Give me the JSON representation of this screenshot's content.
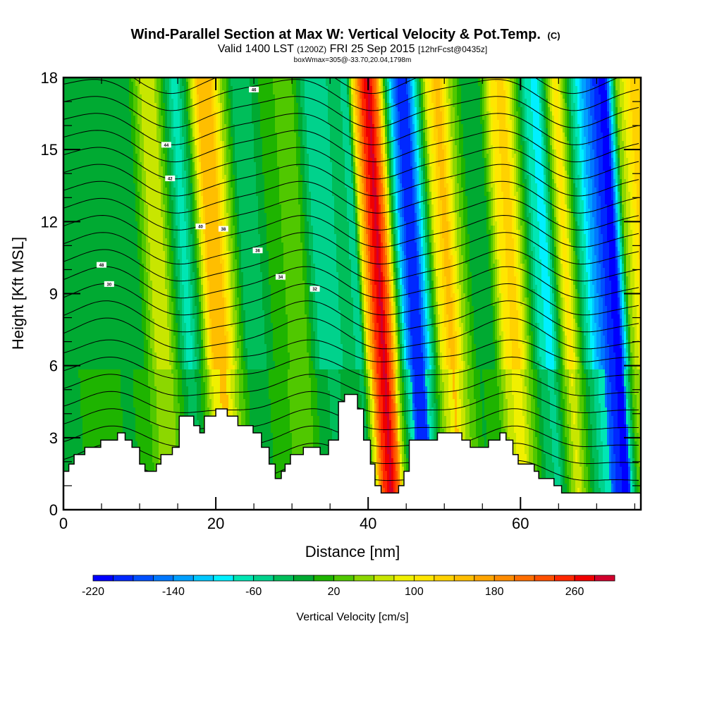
{
  "chart_data": {
    "type": "heatmap",
    "title": "Wind-Parallel Section at Max W: Vertical Velocity & Pot.Temp.",
    "title_mark": "(C)",
    "subtitle": {
      "prefix": "Valid 1400 LST",
      "utc": "(1200Z)",
      "date": "FRI 25 Sep 2015",
      "forecast": "[12hrFcst@0435z]"
    },
    "info_line": "boxWmax=305@-33.70,20.04,1798m",
    "xlabel": "Distance [nm]",
    "ylabel": "Height [Kft MSL]",
    "xlim": [
      0,
      75.8
    ],
    "ylim": [
      0,
      18
    ],
    "xticks": [
      0,
      20,
      40,
      60
    ],
    "xtick_labels": [
      "0",
      "20",
      "40",
      "60"
    ],
    "yticks": [
      0,
      3,
      6,
      9,
      12,
      15,
      18
    ],
    "ytick_labels": [
      "0",
      "3",
      "6",
      "9",
      "12",
      "15",
      "18"
    ],
    "colorbar": {
      "label": "Vertical Velocity [cm/s]",
      "min": -220,
      "max": 300,
      "step": 20,
      "tick_values": [
        -220,
        -140,
        -60,
        20,
        100,
        180,
        260
      ],
      "tick_labels": [
        "-220",
        "-140",
        "-60",
        "20",
        "100",
        "180",
        "260"
      ],
      "colors": [
        "#0000ff",
        "#0028ff",
        "#0050ff",
        "#0078ff",
        "#00a0ff",
        "#00c8ff",
        "#00f0ff",
        "#00e6b4",
        "#00d28c",
        "#00be5a",
        "#00aa32",
        "#1eb400",
        "#50c800",
        "#8cd700",
        "#c8e600",
        "#f0f000",
        "#ffe600",
        "#ffd200",
        "#ffbe00",
        "#ffa500",
        "#ff8c00",
        "#ff6e00",
        "#ff5000",
        "#ff2800",
        "#f00000",
        "#d2002d"
      ]
    },
    "vv_columns": {
      "x_nm": [
        0,
        4,
        8,
        10,
        11.5,
        13,
        14.5,
        16,
        17.5,
        19,
        20.5,
        22,
        23.5,
        25,
        27,
        29,
        31,
        33,
        35,
        37,
        38.5,
        39.5,
        40.5,
        41.5,
        42.5,
        43.5,
        44.5,
        45.5,
        46.5,
        47.5,
        49,
        50.5,
        52,
        54,
        56,
        57.5,
        59,
        60.5,
        62,
        63.5,
        65,
        66,
        67,
        68,
        69.5,
        71,
        72.5,
        74,
        75.8
      ],
      "w_cm_s": [
        -20,
        -10,
        -20,
        0,
        60,
        80,
        0,
        -80,
        0,
        140,
        160,
        60,
        -20,
        -40,
        0,
        20,
        40,
        -40,
        -60,
        -20,
        -60,
        120,
        240,
        290,
        200,
        20,
        -120,
        -200,
        -180,
        -80,
        80,
        160,
        60,
        -20,
        0,
        100,
        140,
        40,
        -60,
        -100,
        40,
        120,
        40,
        -40,
        -120,
        -180,
        -220,
        40,
        120
      ]
    },
    "terrain_kft": {
      "x_nm": [
        0,
        0.7,
        1.4,
        2.8,
        4.9,
        7.1,
        8.1,
        9.0,
        10.0,
        10.7,
        12.2,
        12.8,
        14.3,
        15.2,
        15.2,
        17.1,
        17.9,
        18.5,
        20.0,
        21.5,
        22.9,
        24.9,
        26.0,
        27.0,
        27.8,
        28.6,
        29.1,
        29.8,
        31.5,
        33.7,
        34.8,
        36.1,
        36.9,
        38.6,
        39.4,
        40.3,
        40.9,
        41.7,
        44.0,
        44.7,
        45.4,
        49.1,
        52.3,
        53.4,
        55.8,
        57.3,
        58.1,
        59.0,
        59.7,
        61.8,
        62.4,
        64.4,
        65.4,
        75.8
      ],
      "height": [
        1.6,
        1.9,
        2.3,
        2.6,
        2.9,
        3.2,
        2.9,
        2.6,
        1.9,
        1.6,
        1.9,
        2.3,
        2.6,
        3.9,
        3.9,
        3.5,
        3.2,
        3.9,
        4.2,
        3.9,
        3.5,
        3.2,
        2.6,
        1.9,
        1.3,
        1.6,
        1.9,
        2.3,
        2.6,
        2.3,
        2.9,
        4.5,
        4.8,
        4.2,
        2.9,
        1.9,
        1.0,
        0.7,
        1.0,
        1.6,
        2.9,
        3.2,
        2.9,
        2.6,
        2.9,
        3.2,
        2.9,
        2.3,
        1.9,
        1.6,
        1.3,
        1.0,
        0.7,
        0.35
      ]
    },
    "theta_contours_K": {
      "interval": 2,
      "labels_shown": [
        "46",
        "44",
        "42",
        "40",
        "38",
        "36",
        "34",
        "32",
        "30",
        "48"
      ]
    }
  }
}
